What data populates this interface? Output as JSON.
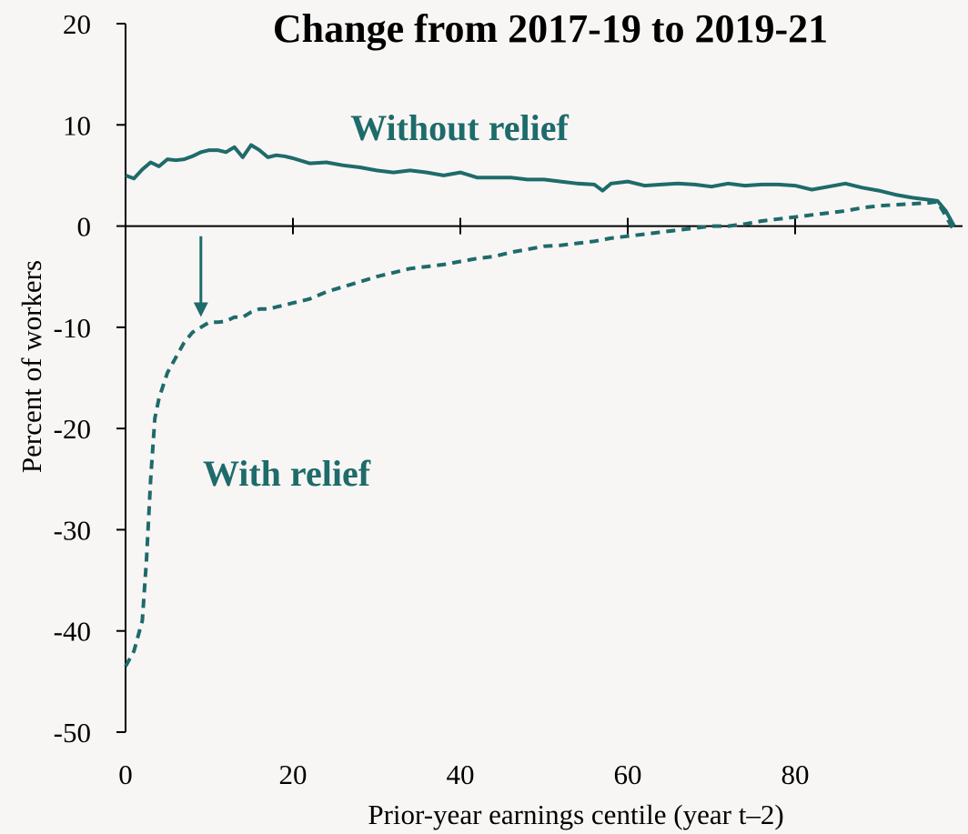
{
  "chart_data": {
    "type": "line",
    "title": "Change from 2017-19 to 2019-21",
    "xlabel": "Prior-year earnings centile (year t–2)",
    "ylabel": "Percent of workers",
    "xlim": [
      0,
      100
    ],
    "ylim": [
      -50,
      20
    ],
    "x_ticks": [
      0,
      20,
      40,
      60,
      80
    ],
    "y_ticks": [
      20,
      10,
      0,
      -10,
      -20,
      -30,
      -40,
      -50
    ],
    "grid": false,
    "legend": "none",
    "colors": {
      "series": "#1e6b6b",
      "axis": "#000000"
    },
    "annotations": [
      {
        "type": "arrow",
        "from": [
          9,
          -1
        ],
        "to": [
          9,
          -8.8
        ]
      }
    ],
    "series": [
      {
        "name": "Without relief",
        "style": "solid",
        "x": [
          0,
          1,
          2,
          3,
          4,
          5,
          6,
          7,
          8,
          9,
          10,
          11,
          12,
          13,
          14,
          15,
          16,
          17,
          18,
          19,
          20,
          22,
          24,
          26,
          28,
          30,
          32,
          34,
          36,
          38,
          40,
          42,
          44,
          46,
          48,
          50,
          52,
          54,
          56,
          57,
          58,
          60,
          62,
          64,
          66,
          68,
          70,
          72,
          74,
          76,
          78,
          80,
          82,
          84,
          86,
          88,
          90,
          92,
          94,
          96,
          97,
          98,
          99
        ],
        "values": [
          5.0,
          4.7,
          5.6,
          6.3,
          5.9,
          6.6,
          6.5,
          6.6,
          6.9,
          7.3,
          7.5,
          7.5,
          7.3,
          7.8,
          6.8,
          8.0,
          7.5,
          6.8,
          7.0,
          6.9,
          6.7,
          6.2,
          6.3,
          6.0,
          5.8,
          5.5,
          5.3,
          5.5,
          5.3,
          5.0,
          5.3,
          4.8,
          4.8,
          4.8,
          4.6,
          4.6,
          4.4,
          4.2,
          4.1,
          3.5,
          4.2,
          4.4,
          4.0,
          4.1,
          4.2,
          4.1,
          3.9,
          4.2,
          4.0,
          4.1,
          4.1,
          4.0,
          3.6,
          3.9,
          4.2,
          3.8,
          3.5,
          3.1,
          2.8,
          2.6,
          2.5,
          1.5,
          0.0
        ]
      },
      {
        "name": "With relief",
        "style": "dashed",
        "x": [
          0,
          1,
          2,
          2.5,
          3,
          3.5,
          4,
          5,
          6,
          7,
          8,
          9,
          10,
          11,
          12,
          13,
          14,
          15,
          16,
          17,
          18,
          19,
          20,
          22,
          24,
          26,
          28,
          30,
          32,
          34,
          36,
          38,
          40,
          42,
          44,
          46,
          48,
          50,
          52,
          54,
          56,
          58,
          60,
          62,
          64,
          66,
          68,
          70,
          72,
          74,
          76,
          78,
          80,
          82,
          84,
          86,
          88,
          90,
          92,
          94,
          96,
          97,
          98,
          99
        ],
        "values": [
          -43.5,
          -42.0,
          -39.0,
          -33.0,
          -25.0,
          -19.0,
          -17.0,
          -14.5,
          -13.0,
          -11.5,
          -10.5,
          -10.0,
          -9.5,
          -9.5,
          -9.4,
          -9.0,
          -9.0,
          -8.5,
          -8.2,
          -8.2,
          -8.0,
          -7.8,
          -7.6,
          -7.2,
          -6.5,
          -6.0,
          -5.5,
          -5.0,
          -4.6,
          -4.2,
          -4.0,
          -3.8,
          -3.5,
          -3.2,
          -3.0,
          -2.6,
          -2.3,
          -2.0,
          -1.9,
          -1.7,
          -1.5,
          -1.2,
          -1.0,
          -0.8,
          -0.6,
          -0.4,
          -0.2,
          0.0,
          0.0,
          0.2,
          0.5,
          0.7,
          0.9,
          1.1,
          1.3,
          1.5,
          1.8,
          2.0,
          2.1,
          2.2,
          2.3,
          2.4,
          1.0,
          -0.5
        ]
      }
    ]
  }
}
